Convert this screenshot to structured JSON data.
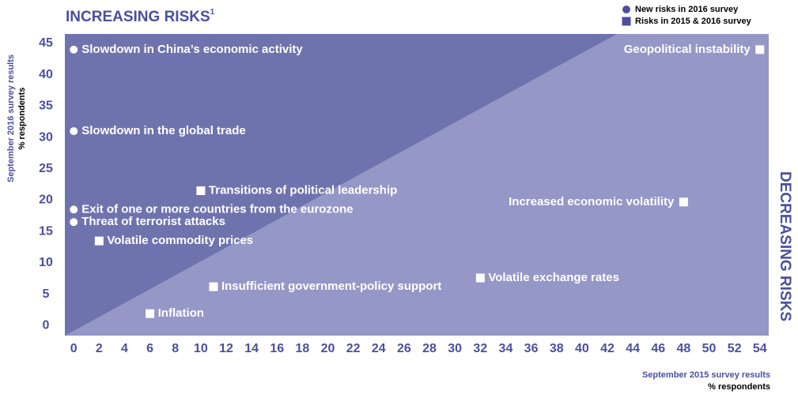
{
  "chart_data": {
    "type": "scatter",
    "title": "INCREASING RISKS",
    "title_note": "1",
    "right_label": "DECREASING RISKS",
    "x_label": "September 2015 survey results",
    "x_unit": "% respondents",
    "y_label": "September 2016 survey results",
    "y_unit": "% respondents",
    "xlim": [
      -0.7,
      54.7
    ],
    "ylim": [
      -1.6,
      46.5
    ],
    "xticks": [
      0,
      2,
      4,
      6,
      8,
      10,
      12,
      14,
      16,
      18,
      20,
      22,
      24,
      26,
      28,
      30,
      32,
      34,
      36,
      38,
      40,
      42,
      44,
      46,
      48,
      50,
      52,
      54
    ],
    "yticks": [
      0,
      5,
      10,
      15,
      20,
      25,
      30,
      35,
      40,
      45
    ],
    "legend_marker_color": "#4b4f9e",
    "series": [
      {
        "name": "New risks in 2016 survey",
        "marker": "circle",
        "color": "#ffffff",
        "x": [
          0,
          0,
          0,
          0
        ],
        "y": [
          44,
          31,
          18.5,
          16.5
        ],
        "labels": [
          "Slowdown in China’s economic activity",
          "Slowdown in the global trade",
          "Exit of one or more countries from the eurozone",
          "Threat of terrorist attacks"
        ]
      },
      {
        "name": "Risks in 2015 & 2016 survey",
        "marker": "square",
        "color": "#ffffff",
        "x": [
          54,
          10,
          48,
          2,
          11,
          32,
          6
        ],
        "y": [
          44,
          21.5,
          19.7,
          13.5,
          6.2,
          7.6,
          1.9
        ],
        "labels": [
          "Geopolitical instability",
          "Transitions of political leadership",
          "Increased economic volatility",
          "Volatile commodity prices",
          "Insufficient government-policy support",
          "Volatile exchange rates",
          "Inflation"
        ]
      }
    ]
  }
}
